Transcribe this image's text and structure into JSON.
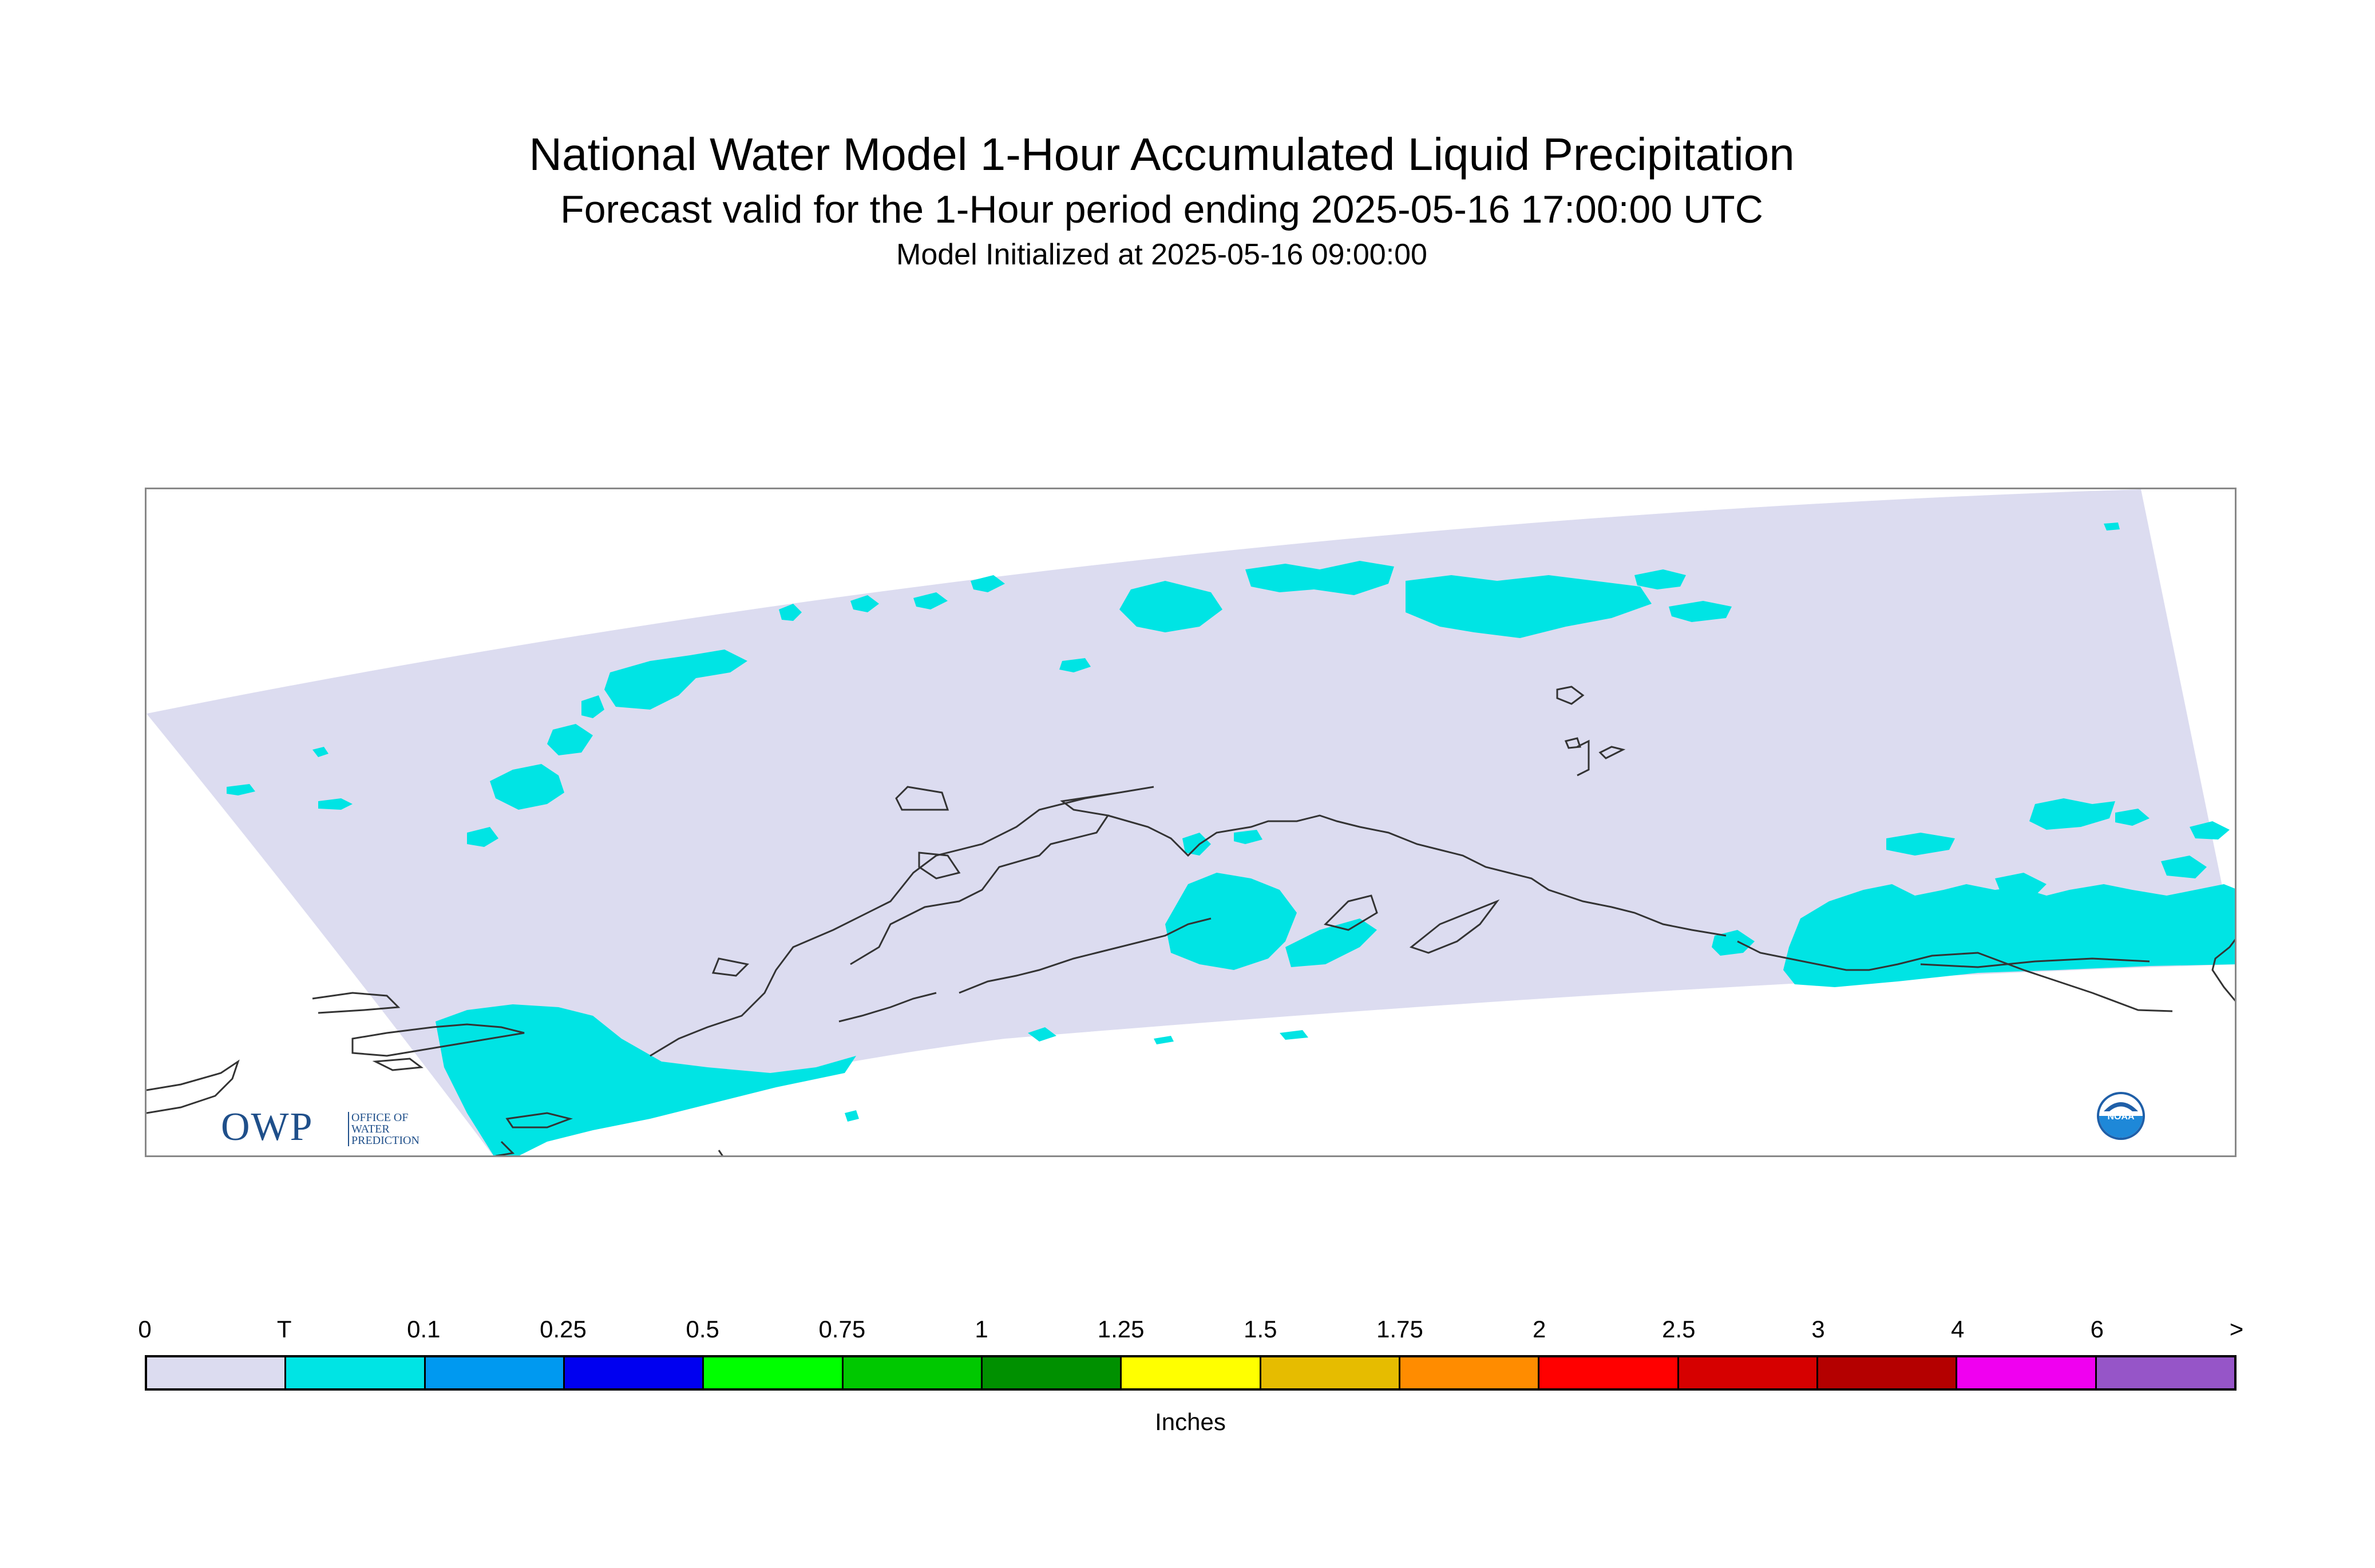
{
  "header": {
    "title": "National Water Model 1-Hour Accumulated Liquid Precipitation",
    "subtitle": "Forecast valid for the 1-Hour period ending 2025-05-16 17:00:00 UTC",
    "init_line": "Model Initialized at 2025-05-16 09:00:00"
  },
  "map": {
    "domain_fill_color": "#dcdcf0",
    "precip_color": "#00e4e4",
    "coastline_color": "#333333",
    "owp_logo": {
      "main": "OWP",
      "sub": "OFFICE OF WATER PREDICTION"
    },
    "noaa_logo": {
      "text": "NOAA",
      "icon": "noaa-logo-icon"
    }
  },
  "legend": {
    "labels": [
      "0",
      "T",
      "0.1",
      "0.25",
      "0.5",
      "0.75",
      "1",
      "1.25",
      "1.5",
      "1.75",
      "2",
      "2.5",
      "3",
      "4",
      "6",
      ">"
    ],
    "colors": [
      "#dcdcf0",
      "#00e4e4",
      "#0099f0",
      "#0000f0",
      "#00ff00",
      "#00c800",
      "#009000",
      "#ffff00",
      "#e6bc00",
      "#ff8c00",
      "#ff0000",
      "#d60000",
      "#b40000",
      "#f000f0",
      "#9655c8"
    ],
    "units": "Inches"
  }
}
